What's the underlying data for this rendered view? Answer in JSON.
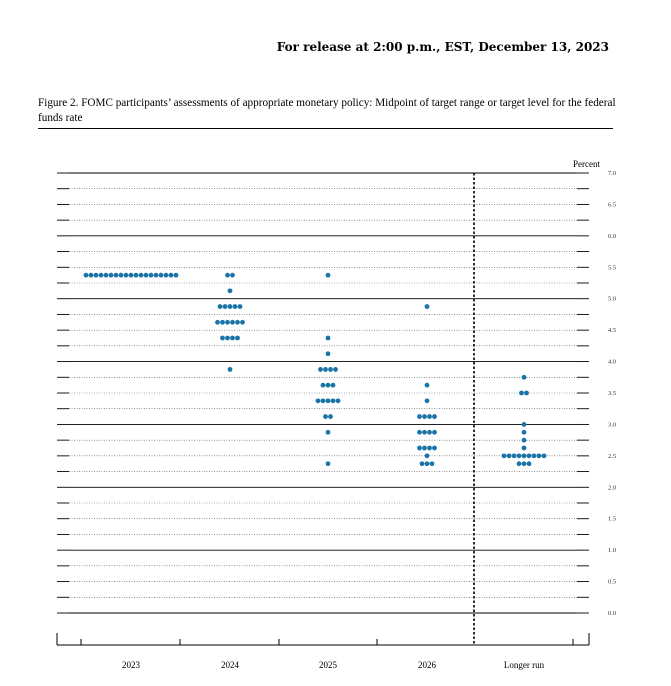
{
  "header": {
    "release": "For release at 2:00 p.m., EST, December 13, 2023"
  },
  "figure": {
    "caption": "Figure 2.  FOMC participants’ assessments of appropriate monetary policy:  Midpoint of target range or target level for the federal funds rate"
  },
  "chart_data": {
    "type": "scatter",
    "subtype": "dot-plot",
    "ylabel": "Percent",
    "ylim": [
      0,
      7
    ],
    "y_ticks": [
      "0.0",
      "0.5",
      "1.0",
      "1.5",
      "2.0",
      "2.5",
      "3.0",
      "3.5",
      "4.0",
      "4.5",
      "5.0",
      "5.5",
      "6.0",
      "6.5",
      "7.0"
    ],
    "categories": [
      "2023",
      "2024",
      "2025",
      "2026",
      "Longer run"
    ],
    "grid": true,
    "dot_color": "#1a74a8",
    "dots": [
      {
        "category": "2023",
        "values": [
          {
            "rate": 5.375,
            "count": 19
          }
        ]
      },
      {
        "category": "2024",
        "values": [
          {
            "rate": 5.375,
            "count": 2
          },
          {
            "rate": 5.125,
            "count": 1
          },
          {
            "rate": 4.875,
            "count": 5
          },
          {
            "rate": 4.625,
            "count": 6
          },
          {
            "rate": 4.375,
            "count": 4
          },
          {
            "rate": 3.875,
            "count": 1
          }
        ]
      },
      {
        "category": "2025",
        "values": [
          {
            "rate": 5.375,
            "count": 1
          },
          {
            "rate": 4.375,
            "count": 1
          },
          {
            "rate": 4.125,
            "count": 1
          },
          {
            "rate": 3.875,
            "count": 4
          },
          {
            "rate": 3.625,
            "count": 3
          },
          {
            "rate": 3.375,
            "count": 5
          },
          {
            "rate": 3.125,
            "count": 2
          },
          {
            "rate": 2.875,
            "count": 1
          },
          {
            "rate": 2.375,
            "count": 1
          }
        ]
      },
      {
        "category": "2026",
        "values": [
          {
            "rate": 4.875,
            "count": 1
          },
          {
            "rate": 3.625,
            "count": 1
          },
          {
            "rate": 3.375,
            "count": 1
          },
          {
            "rate": 3.125,
            "count": 4
          },
          {
            "rate": 2.875,
            "count": 4
          },
          {
            "rate": 2.625,
            "count": 4
          },
          {
            "rate": 2.5,
            "count": 1
          },
          {
            "rate": 2.375,
            "count": 3
          }
        ]
      },
      {
        "category": "Longer run",
        "values": [
          {
            "rate": 3.75,
            "count": 1
          },
          {
            "rate": 3.5,
            "count": 2
          },
          {
            "rate": 3.0,
            "count": 1
          },
          {
            "rate": 2.875,
            "count": 1
          },
          {
            "rate": 2.75,
            "count": 1
          },
          {
            "rate": 2.625,
            "count": 1
          },
          {
            "rate": 2.5,
            "count": 9
          },
          {
            "rate": 2.375,
            "count": 3
          }
        ]
      }
    ]
  }
}
